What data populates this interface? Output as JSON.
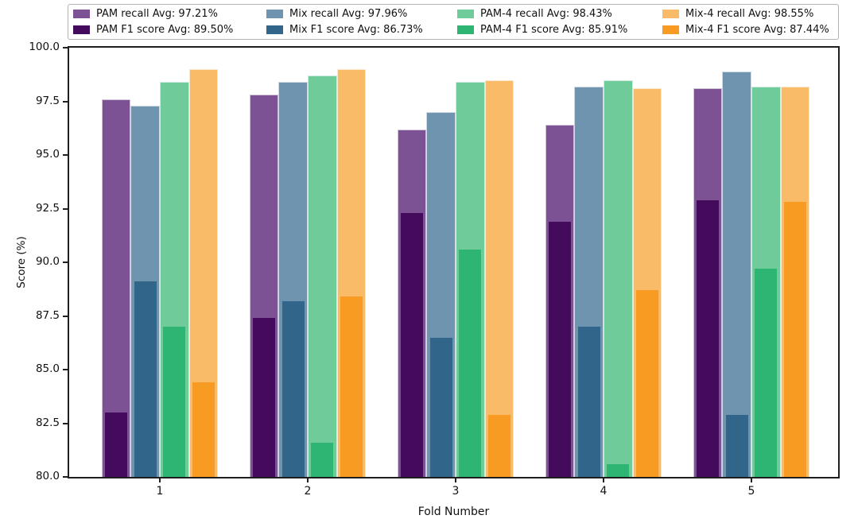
{
  "chart_data": {
    "type": "bar",
    "title": "",
    "xlabel": "Fold Number",
    "ylabel": "Score (%)",
    "categories": [
      "1",
      "2",
      "3",
      "4",
      "5"
    ],
    "ylim": [
      80.0,
      100.0
    ],
    "yticks": [
      "100.0",
      "97.5",
      "95.0",
      "92.5",
      "90.0",
      "87.5",
      "85.0",
      "82.5",
      "80.0"
    ],
    "grid": false,
    "legend_position": "top outside plot, bordered box, 4 columns x 2 rows",
    "bar_layout": "5 fold groups; per group 4 wide recall bars side by side, with a narrower dark F1 bar overlaid in front of its matching recall bar",
    "series": [
      {
        "name": "PAM recall",
        "legend_label": "PAM recall Avg: 97.21%",
        "avg": "97.21%",
        "role": "recall",
        "color": "#7d5294",
        "values": [
          97.6,
          97.8,
          96.2,
          96.4,
          98.1
        ]
      },
      {
        "name": "PAM F1 score",
        "legend_label": "PAM F1 score Avg: 89.50%",
        "avg": "89.50%",
        "role": "f1",
        "color": "#440b5c",
        "values": [
          83.0,
          87.4,
          92.3,
          91.9,
          92.9
        ]
      },
      {
        "name": "Mix recall",
        "legend_label": "Mix recall Avg: 97.96%",
        "avg": "97.96%",
        "role": "recall",
        "color": "#6f94b0",
        "values": [
          97.3,
          98.4,
          97.0,
          98.2,
          98.9
        ]
      },
      {
        "name": "Mix F1 score",
        "legend_label": "Mix F1 score Avg: 86.73%",
        "avg": "86.73%",
        "role": "f1",
        "color": "#32658a",
        "values": [
          89.1,
          88.2,
          86.5,
          87.0,
          82.9
        ]
      },
      {
        "name": "PAM-4 recall",
        "legend_label": "PAM-4 recall Avg: 98.43%",
        "avg": "98.43%",
        "role": "recall",
        "color": "#6fcb9a",
        "values": [
          98.4,
          98.7,
          98.4,
          98.5,
          98.2
        ]
      },
      {
        "name": "PAM-4 F1 score",
        "legend_label": "PAM-4 F1 score Avg: 85.91%",
        "avg": "85.91%",
        "role": "f1",
        "color": "#2eb573",
        "values": [
          87.0,
          81.6,
          90.6,
          80.6,
          89.7
        ]
      },
      {
        "name": "Mix-4 recall",
        "legend_label": "Mix-4 recall Avg: 98.55%",
        "avg": "98.55%",
        "role": "recall",
        "color": "#fabb68",
        "values": [
          99.0,
          99.0,
          98.5,
          98.1,
          98.2
        ]
      },
      {
        "name": "Mix-4 F1 score",
        "legend_label": "Mix-4 F1 score Avg: 87.44%",
        "avg": "87.44%",
        "role": "f1",
        "color": "#f79b23",
        "values": [
          84.4,
          88.4,
          82.9,
          88.7,
          92.8
        ]
      }
    ]
  }
}
